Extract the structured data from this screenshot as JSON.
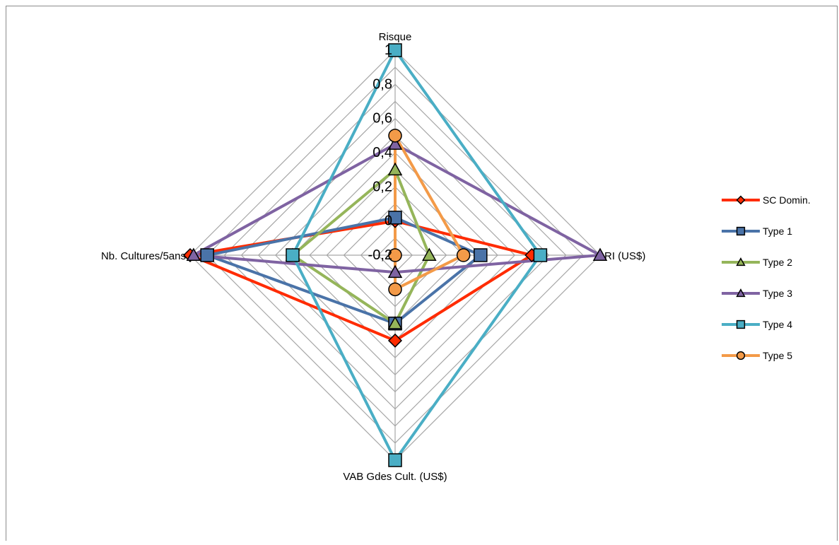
{
  "chart_data": {
    "type": "radar",
    "axes": [
      "Risque",
      "RI (US$)",
      "VAB Gdes Cult. (US$)",
      "Nb. Cultures/5ans"
    ],
    "r_ticks": [
      "-0,2",
      "0",
      "0,2",
      "0,4",
      "0,6",
      "0,8",
      "1"
    ],
    "rlim": [
      -0.2,
      1
    ],
    "grid": true,
    "legend_position": "right",
    "series": [
      {
        "name": "SC Domin.",
        "color": "#ff2b00",
        "marker": "diamond",
        "values": [
          0.0,
          0.6,
          0.3,
          1.0
        ]
      },
      {
        "name": "Type 1",
        "color": "#4a73a8",
        "marker": "square",
        "values": [
          0.02,
          0.3,
          0.2,
          0.9
        ]
      },
      {
        "name": "Type 2",
        "color": "#95b55a",
        "marker": "triangle",
        "values": [
          0.3,
          0.0,
          0.2,
          0.4
        ]
      },
      {
        "name": "Type 3",
        "color": "#7f63a2",
        "marker": "triangle",
        "values": [
          0.45,
          1.0,
          -0.1,
          0.98
        ]
      },
      {
        "name": "Type 4",
        "color": "#4aaec5",
        "marker": "square",
        "values": [
          1.0,
          0.65,
          1.0,
          0.4
        ]
      },
      {
        "name": "Type 5",
        "color": "#f39a48",
        "marker": "circle",
        "values": [
          0.5,
          0.2,
          -0.0,
          -0.2
        ]
      }
    ]
  }
}
